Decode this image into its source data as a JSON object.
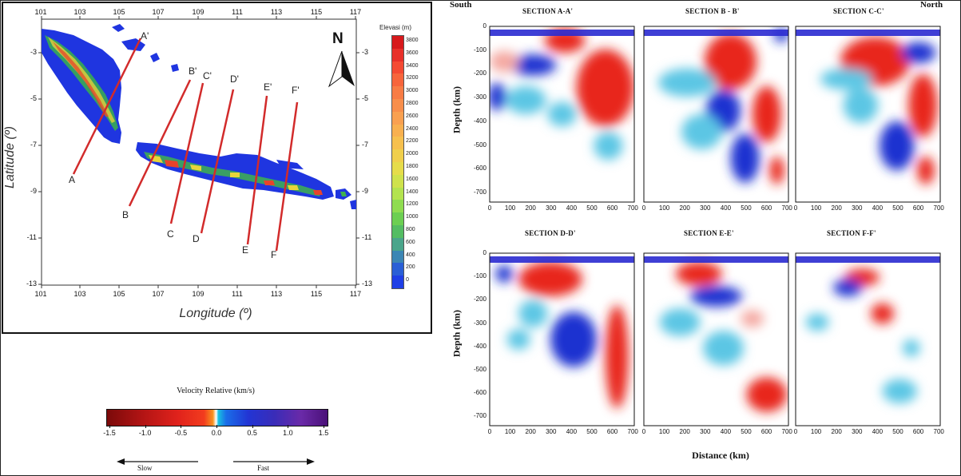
{
  "map": {
    "x_ticks": [
      "101",
      "103",
      "105",
      "107",
      "109",
      "111",
      "113",
      "115",
      "117"
    ],
    "y_ticks": [
      "-3",
      "-5",
      "-7",
      "-9",
      "-11",
      "-13"
    ],
    "xlabel": "Longitude (º)",
    "ylabel": "Latitude (º)",
    "north_label": "N",
    "elev_title": "Elevasi (m)",
    "elev_ticks": [
      "3800",
      "3600",
      "3400",
      "3200",
      "3000",
      "2800",
      "2600",
      "2400",
      "2200",
      "2000",
      "1800",
      "1600",
      "1400",
      "1200",
      "1000",
      "800",
      "600",
      "400",
      "200",
      "0"
    ],
    "elev_colors": [
      "#d7191c",
      "#e8302a",
      "#f44a33",
      "#f7653c",
      "#f87c45",
      "#f88e4b",
      "#f9a050",
      "#f8b04f",
      "#f6c04e",
      "#f0cf4c",
      "#e6dc4a",
      "#cfe24c",
      "#b3e34f",
      "#8fdc50",
      "#6ccf52",
      "#54bd63",
      "#4aa58b",
      "#3c86b4",
      "#2a5fd6",
      "#1f3fe6"
    ],
    "profiles": [
      {
        "start": "A",
        "end": "A'"
      },
      {
        "start": "B",
        "end": "B'"
      },
      {
        "start": "C",
        "end": "C'"
      },
      {
        "start": "D",
        "end": "D'"
      },
      {
        "start": "E",
        "end": "E'"
      },
      {
        "start": "F",
        "end": "F'"
      }
    ]
  },
  "legend": {
    "title": "Velocity Relative  (km/s)",
    "ticks": [
      "-1.5",
      "-1.0",
      "-0.5",
      "0.0",
      "0.5",
      "1.0",
      "1.5"
    ],
    "slow": "Slow",
    "fast": "Fast"
  },
  "sections": {
    "south": "South",
    "north": "North",
    "ylabel": "Depth (km)",
    "xlabel": "Distance (km)",
    "x_ticks": [
      "0",
      "100",
      "200",
      "300",
      "400",
      "500",
      "600",
      "700"
    ],
    "y_ticks": [
      "0",
      "-100",
      "-200",
      "-300",
      "-400",
      "-500",
      "-600",
      "-700"
    ],
    "titles": [
      "SECTION A-A'",
      "SECTION B - B'",
      "SECTION C-C'",
      "SECTION D-D'",
      "SECTION E-E'",
      "SECTION  F-F'"
    ]
  }
}
